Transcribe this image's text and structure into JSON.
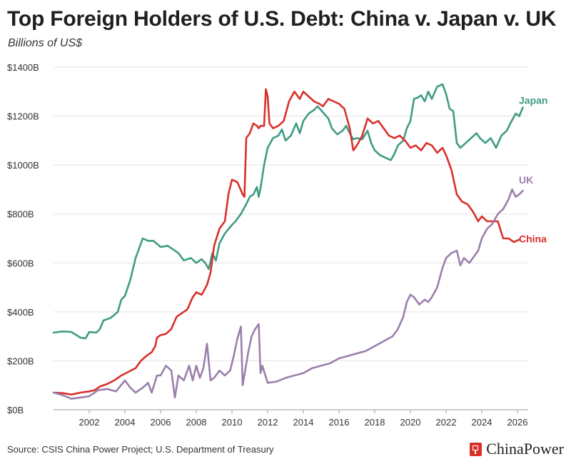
{
  "header": {
    "title": "Top Foreign Holders of U.S. Debt: China v. Japan v. UK",
    "subtitle": "Billions of US$"
  },
  "footer": {
    "source": "Source: CSIS China Power Project; U.S. Department of Treasury",
    "brand": "ChinaPower",
    "brand_icon": "chinapower-logo-icon",
    "brand_color": "#d9302a"
  },
  "chart_data": {
    "type": "line",
    "title": "Top Foreign Holders of U.S. Debt: China v. Japan v. UK",
    "subtitle": "Billions of US$",
    "xlabel": "",
    "ylabel": "",
    "xlim": [
      2000,
      2026.6
    ],
    "ylim": [
      0,
      1400
    ],
    "x_ticks": [
      2002,
      2004,
      2006,
      2008,
      2010,
      2012,
      2014,
      2016,
      2018,
      2020,
      2022,
      2024,
      2026
    ],
    "y_ticks": [
      0,
      200,
      400,
      600,
      800,
      1000,
      1200,
      1400
    ],
    "y_tick_labels": [
      "$0B",
      "$200B",
      "$400B",
      "$600B",
      "$800B",
      "$1000B",
      "$1200B",
      "$1400B"
    ],
    "grid": "horizontal",
    "legend": "direct-labels-right",
    "series": [
      {
        "name": "Japan",
        "color": "#3f9c84",
        "points": [
          [
            2000.0,
            315
          ],
          [
            2000.5,
            320
          ],
          [
            2001.0,
            318
          ],
          [
            2001.5,
            295
          ],
          [
            2001.8,
            292
          ],
          [
            2002.0,
            318
          ],
          [
            2002.4,
            315
          ],
          [
            2002.6,
            330
          ],
          [
            2002.8,
            365
          ],
          [
            2003.2,
            375
          ],
          [
            2003.6,
            400
          ],
          [
            2003.8,
            450
          ],
          [
            2004.0,
            465
          ],
          [
            2004.3,
            530
          ],
          [
            2004.6,
            620
          ],
          [
            2004.8,
            660
          ],
          [
            2005.0,
            700
          ],
          [
            2005.3,
            690
          ],
          [
            2005.6,
            690
          ],
          [
            2006.0,
            665
          ],
          [
            2006.4,
            670
          ],
          [
            2006.8,
            650
          ],
          [
            2007.0,
            640
          ],
          [
            2007.3,
            610
          ],
          [
            2007.7,
            620
          ],
          [
            2008.0,
            600
          ],
          [
            2008.3,
            615
          ],
          [
            2008.5,
            600
          ],
          [
            2008.7,
            575
          ],
          [
            2008.9,
            640
          ],
          [
            2009.1,
            610
          ],
          [
            2009.3,
            680
          ],
          [
            2009.6,
            720
          ],
          [
            2010.0,
            755
          ],
          [
            2010.2,
            770
          ],
          [
            2010.5,
            800
          ],
          [
            2010.8,
            840
          ],
          [
            2011.0,
            870
          ],
          [
            2011.2,
            880
          ],
          [
            2011.4,
            910
          ],
          [
            2011.5,
            870
          ],
          [
            2011.6,
            905
          ],
          [
            2011.8,
            1000
          ],
          [
            2012.0,
            1070
          ],
          [
            2012.3,
            1110
          ],
          [
            2012.6,
            1120
          ],
          [
            2012.8,
            1145
          ],
          [
            2013.0,
            1100
          ],
          [
            2013.3,
            1120
          ],
          [
            2013.6,
            1170
          ],
          [
            2013.8,
            1130
          ],
          [
            2014.0,
            1180
          ],
          [
            2014.3,
            1210
          ],
          [
            2014.6,
            1225
          ],
          [
            2014.8,
            1240
          ],
          [
            2015.1,
            1215
          ],
          [
            2015.4,
            1190
          ],
          [
            2015.6,
            1150
          ],
          [
            2015.9,
            1125
          ],
          [
            2016.2,
            1140
          ],
          [
            2016.4,
            1160
          ],
          [
            2016.6,
            1130
          ],
          [
            2016.8,
            1105
          ],
          [
            2017.0,
            1110
          ],
          [
            2017.3,
            1105
          ],
          [
            2017.6,
            1140
          ],
          [
            2017.8,
            1090
          ],
          [
            2018.0,
            1060
          ],
          [
            2018.3,
            1040
          ],
          [
            2018.6,
            1030
          ],
          [
            2018.9,
            1020
          ],
          [
            2019.1,
            1045
          ],
          [
            2019.3,
            1080
          ],
          [
            2019.6,
            1100
          ],
          [
            2019.8,
            1150
          ],
          [
            2020.0,
            1180
          ],
          [
            2020.2,
            1270
          ],
          [
            2020.4,
            1275
          ],
          [
            2020.6,
            1285
          ],
          [
            2020.8,
            1260
          ],
          [
            2021.0,
            1300
          ],
          [
            2021.2,
            1270
          ],
          [
            2021.5,
            1320
          ],
          [
            2021.8,
            1330
          ],
          [
            2022.0,
            1290
          ],
          [
            2022.2,
            1230
          ],
          [
            2022.4,
            1220
          ],
          [
            2022.6,
            1090
          ],
          [
            2022.8,
            1070
          ],
          [
            2023.1,
            1090
          ],
          [
            2023.4,
            1110
          ],
          [
            2023.7,
            1130
          ],
          [
            2023.9,
            1110
          ],
          [
            2024.2,
            1090
          ],
          [
            2024.5,
            1110
          ],
          [
            2024.8,
            1070
          ],
          [
            2025.1,
            1120
          ],
          [
            2025.4,
            1140
          ],
          [
            2025.6,
            1170
          ],
          [
            2025.9,
            1210
          ],
          [
            2026.1,
            1200
          ],
          [
            2026.3,
            1235
          ]
        ]
      },
      {
        "name": "China",
        "color": "#d9302a",
        "points": [
          [
            2000.0,
            70
          ],
          [
            2000.5,
            68
          ],
          [
            2001.0,
            62
          ],
          [
            2001.5,
            70
          ],
          [
            2002.0,
            75
          ],
          [
            2002.3,
            80
          ],
          [
            2002.6,
            95
          ],
          [
            2003.0,
            105
          ],
          [
            2003.4,
            120
          ],
          [
            2003.8,
            140
          ],
          [
            2004.2,
            155
          ],
          [
            2004.6,
            170
          ],
          [
            2004.9,
            200
          ],
          [
            2005.2,
            220
          ],
          [
            2005.5,
            235
          ],
          [
            2005.7,
            260
          ],
          [
            2005.8,
            295
          ],
          [
            2006.0,
            305
          ],
          [
            2006.3,
            310
          ],
          [
            2006.6,
            330
          ],
          [
            2006.9,
            380
          ],
          [
            2007.2,
            395
          ],
          [
            2007.5,
            410
          ],
          [
            2007.8,
            460
          ],
          [
            2008.0,
            480
          ],
          [
            2008.3,
            470
          ],
          [
            2008.6,
            510
          ],
          [
            2008.8,
            560
          ],
          [
            2009.0,
            670
          ],
          [
            2009.3,
            740
          ],
          [
            2009.6,
            770
          ],
          [
            2009.8,
            880
          ],
          [
            2010.0,
            940
          ],
          [
            2010.3,
            930
          ],
          [
            2010.6,
            880
          ],
          [
            2010.7,
            870
          ],
          [
            2010.8,
            1110
          ],
          [
            2011.0,
            1130
          ],
          [
            2011.2,
            1170
          ],
          [
            2011.4,
            1160
          ],
          [
            2011.5,
            1150
          ],
          [
            2011.6,
            1160
          ],
          [
            2011.8,
            1160
          ],
          [
            2011.9,
            1310
          ],
          [
            2012.0,
            1280
          ],
          [
            2012.1,
            1170
          ],
          [
            2012.3,
            1150
          ],
          [
            2012.6,
            1160
          ],
          [
            2012.9,
            1180
          ],
          [
            2013.2,
            1260
          ],
          [
            2013.5,
            1300
          ],
          [
            2013.8,
            1270
          ],
          [
            2014.0,
            1300
          ],
          [
            2014.3,
            1280
          ],
          [
            2014.6,
            1260
          ],
          [
            2014.9,
            1250
          ],
          [
            2015.1,
            1240
          ],
          [
            2015.4,
            1270
          ],
          [
            2015.7,
            1260
          ],
          [
            2016.0,
            1250
          ],
          [
            2016.3,
            1230
          ],
          [
            2016.6,
            1150
          ],
          [
            2016.8,
            1060
          ],
          [
            2017.0,
            1080
          ],
          [
            2017.3,
            1120
          ],
          [
            2017.6,
            1190
          ],
          [
            2017.9,
            1170
          ],
          [
            2018.2,
            1180
          ],
          [
            2018.5,
            1150
          ],
          [
            2018.8,
            1120
          ],
          [
            2019.1,
            1110
          ],
          [
            2019.4,
            1120
          ],
          [
            2019.7,
            1100
          ],
          [
            2020.0,
            1070
          ],
          [
            2020.3,
            1080
          ],
          [
            2020.6,
            1060
          ],
          [
            2020.9,
            1090
          ],
          [
            2021.2,
            1080
          ],
          [
            2021.5,
            1050
          ],
          [
            2021.8,
            1070
          ],
          [
            2022.0,
            1040
          ],
          [
            2022.3,
            980
          ],
          [
            2022.6,
            880
          ],
          [
            2022.9,
            850
          ],
          [
            2023.2,
            840
          ],
          [
            2023.5,
            810
          ],
          [
            2023.8,
            770
          ],
          [
            2024.0,
            790
          ],
          [
            2024.3,
            770
          ],
          [
            2024.6,
            770
          ],
          [
            2024.9,
            770
          ],
          [
            2025.2,
            700
          ],
          [
            2025.5,
            700
          ],
          [
            2025.8,
            685
          ],
          [
            2026.1,
            695
          ]
        ]
      },
      {
        "name": "UK",
        "color": "#9a7fab",
        "points": [
          [
            2000.0,
            70
          ],
          [
            2000.5,
            60
          ],
          [
            2001.0,
            45
          ],
          [
            2001.5,
            50
          ],
          [
            2002.0,
            55
          ],
          [
            2002.5,
            80
          ],
          [
            2003.0,
            85
          ],
          [
            2003.5,
            75
          ],
          [
            2004.0,
            120
          ],
          [
            2004.3,
            90
          ],
          [
            2004.6,
            70
          ],
          [
            2005.0,
            90
          ],
          [
            2005.3,
            110
          ],
          [
            2005.5,
            70
          ],
          [
            2005.8,
            140
          ],
          [
            2006.0,
            140
          ],
          [
            2006.3,
            180
          ],
          [
            2006.6,
            160
          ],
          [
            2006.8,
            50
          ],
          [
            2007.0,
            140
          ],
          [
            2007.3,
            120
          ],
          [
            2007.6,
            180
          ],
          [
            2007.8,
            120
          ],
          [
            2008.0,
            180
          ],
          [
            2008.2,
            130
          ],
          [
            2008.4,
            170
          ],
          [
            2008.6,
            270
          ],
          [
            2008.8,
            120
          ],
          [
            2009.0,
            130
          ],
          [
            2009.3,
            160
          ],
          [
            2009.6,
            140
          ],
          [
            2009.9,
            160
          ],
          [
            2010.1,
            220
          ],
          [
            2010.3,
            290
          ],
          [
            2010.5,
            340
          ],
          [
            2010.6,
            100
          ],
          [
            2010.9,
            230
          ],
          [
            2011.1,
            300
          ],
          [
            2011.3,
            330
          ],
          [
            2011.5,
            350
          ],
          [
            2011.6,
            150
          ],
          [
            2011.7,
            180
          ],
          [
            2012.0,
            110
          ],
          [
            2012.5,
            115
          ],
          [
            2013.0,
            130
          ],
          [
            2013.5,
            140
          ],
          [
            2014.0,
            150
          ],
          [
            2014.5,
            170
          ],
          [
            2015.0,
            180
          ],
          [
            2015.5,
            190
          ],
          [
            2016.0,
            210
          ],
          [
            2016.5,
            220
          ],
          [
            2017.0,
            230
          ],
          [
            2017.5,
            240
          ],
          [
            2018.0,
            260
          ],
          [
            2018.5,
            280
          ],
          [
            2019.0,
            300
          ],
          [
            2019.3,
            330
          ],
          [
            2019.6,
            380
          ],
          [
            2019.8,
            440
          ],
          [
            2020.0,
            470
          ],
          [
            2020.2,
            460
          ],
          [
            2020.5,
            430
          ],
          [
            2020.8,
            450
          ],
          [
            2021.0,
            440
          ],
          [
            2021.2,
            460
          ],
          [
            2021.5,
            500
          ],
          [
            2021.8,
            580
          ],
          [
            2022.0,
            620
          ],
          [
            2022.3,
            640
          ],
          [
            2022.6,
            650
          ],
          [
            2022.8,
            590
          ],
          [
            2023.0,
            620
          ],
          [
            2023.3,
            600
          ],
          [
            2023.6,
            630
          ],
          [
            2023.8,
            650
          ],
          [
            2024.0,
            700
          ],
          [
            2024.3,
            740
          ],
          [
            2024.6,
            760
          ],
          [
            2024.9,
            800
          ],
          [
            2025.2,
            820
          ],
          [
            2025.5,
            860
          ],
          [
            2025.7,
            900
          ],
          [
            2025.9,
            870
          ],
          [
            2026.1,
            880
          ],
          [
            2026.3,
            895
          ]
        ]
      }
    ]
  }
}
